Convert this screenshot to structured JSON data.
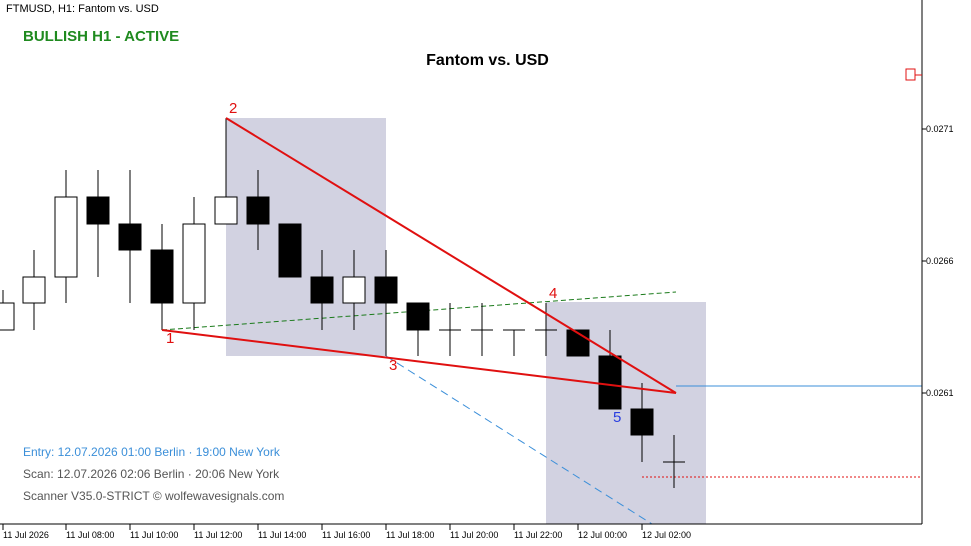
{
  "header": {
    "symbol": "FTMUSD, H1:  Fantom vs. USD",
    "status": "BULLISH H1 - ACTIVE",
    "title": "Fantom vs. USD"
  },
  "info": {
    "entry": "Entry: 12.07.2026  01:00 Berlin · 19:00 New York",
    "scan": "Scan:  12.07.2026  02:06 Berlin · 20:06 New York",
    "scanner": "Scanner V35.0-STRICT  © wolfewavesignals.com"
  },
  "points": [
    "1",
    "2",
    "3",
    "4",
    "5"
  ],
  "y_axis": {
    "labels": [
      "0.0271",
      "0.0266",
      "0.0261"
    ]
  },
  "x_axis": {
    "labels": [
      "11 Jul 2026",
      "11 Jul 08:00",
      "11 Jul 10:00",
      "11 Jul 12:00",
      "11 Jul 14:00",
      "11 Jul 16:00",
      "11 Jul 18:00",
      "11 Jul 20:00",
      "11 Jul 22:00",
      "12 Jul 00:00",
      "12 Jul 02:00"
    ]
  },
  "colors": {
    "bull_candle": "#ffffff",
    "bear_candle": "#000000",
    "wave_line": "#e01010",
    "point5": "#2a3fe0",
    "status": "#1f8a1f",
    "entry": "#3b8fd9",
    "zone": "#d2d2e1"
  },
  "icons": {
    "marker": "square-marker-icon"
  }
}
